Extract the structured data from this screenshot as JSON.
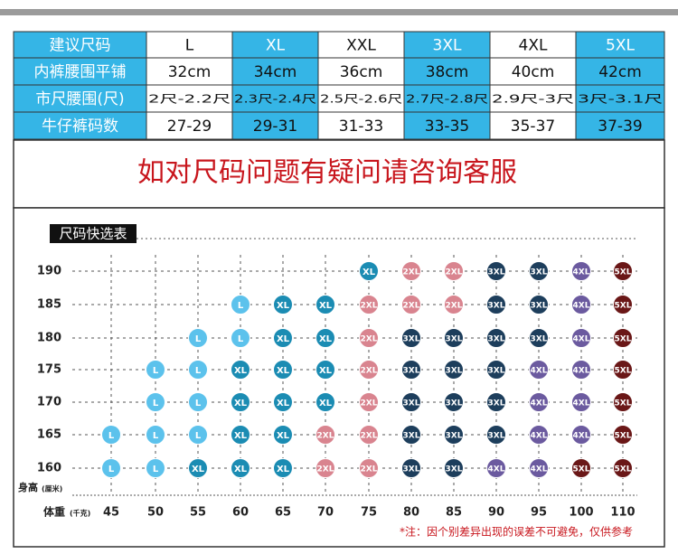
{
  "table": {
    "header": [
      "建议尺码",
      "L",
      "XL",
      "XXL",
      "3XL",
      "4XL",
      "5XL"
    ],
    "rows": [
      [
        "内裤腰围平铺",
        "32cm",
        "34cm",
        "36cm",
        "38cm",
        "40cm",
        "42cm"
      ],
      [
        "市尺腰围(尺)",
        "2尺-2.2尺",
        "2.3尺-2.4尺",
        "2.5尺-2.6尺",
        "2.7尺-2.8尺",
        "2.9尺-3尺",
        "3尺-3.1尺"
      ],
      [
        "牛仔裤码数",
        "27-29",
        "29-31",
        "31-33",
        "33-35",
        "35-37",
        "37-39"
      ]
    ],
    "highlight_color": "#35b5e6"
  },
  "notice": "如对尺码问题有疑问请咨询客服",
  "size_chart": {
    "title": "尺码快选表",
    "y_label": "身高",
    "y_unit": "(厘米)",
    "x_label": "体重",
    "x_unit": "(千克)",
    "heights": [
      190,
      185,
      180,
      175,
      170,
      165,
      160
    ],
    "weights": [
      45,
      50,
      55,
      60,
      65,
      70,
      75,
      80,
      85,
      90,
      95,
      100,
      110
    ],
    "rows": [
      [
        null,
        null,
        null,
        null,
        null,
        null,
        "XL",
        "2XL",
        "2XL",
        "3XL",
        "3XL",
        "4XL",
        "5XL"
      ],
      [
        null,
        null,
        null,
        "L",
        "XL",
        "XL",
        "2XL",
        "2XL",
        "2XL",
        "3XL",
        "3XL",
        "4XL",
        "5XL"
      ],
      [
        null,
        null,
        "L",
        "L",
        "XL",
        "XL",
        "2XL",
        "3XL",
        "3XL",
        "3XL",
        "3XL",
        "4XL",
        "5XL"
      ],
      [
        null,
        "L",
        "L",
        "XL",
        "XL",
        "XL",
        "2XL",
        "3XL",
        "3XL",
        "3XL",
        "4XL",
        "4XL",
        "5XL"
      ],
      [
        null,
        "L",
        "L",
        "XL",
        "XL",
        "XL",
        "2XL",
        "3XL",
        "3XL",
        "3XL",
        "4XL",
        "4XL",
        "5XL"
      ],
      [
        "L",
        "L",
        "L",
        "XL",
        "XL",
        "2XL",
        "2XL",
        "3XL",
        "3XL",
        "3XL",
        "4XL",
        "4XL",
        "5XL"
      ],
      [
        "L",
        "L",
        "XL",
        "XL",
        "XL",
        "2XL",
        "2XL",
        "3XL",
        "3XL",
        "4XL",
        "4XL",
        "5XL",
        "5XL"
      ]
    ],
    "colors": {
      "L": "#5cc2ec",
      "XL": "#1b8cb3",
      "2XL": "#d9848f",
      "3XL": "#1d3e5c",
      "4XL": "#6b5a9f",
      "5XL": "#6a1717"
    },
    "note": "*注：因个别差异出现的误差不可避免，仅供参考"
  }
}
